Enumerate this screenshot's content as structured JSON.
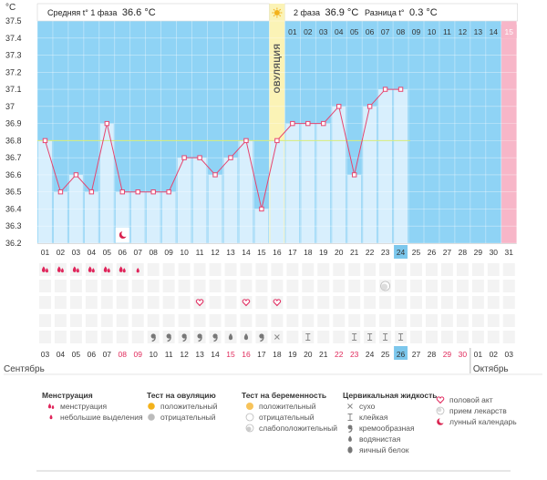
{
  "header": {
    "unit": "°C",
    "phase1_label": "Средняя t° 1 фаза",
    "phase1_value": "36.6 °C",
    "phase2_label": "2 фаза",
    "phase2_value": "36.9 °C",
    "diff_label": "Разница t°",
    "diff_value": "0.3 °C"
  },
  "ovulation_label": "ОВУЛЯЦИЯ",
  "cycle_days": [
    "01",
    "02",
    "03",
    "04",
    "05",
    "06",
    "07",
    "08",
    "09",
    "10",
    "11",
    "12",
    "13",
    "14",
    "15",
    "16",
    "17",
    "18",
    "19",
    "20",
    "21",
    "22",
    "23",
    "24",
    "25",
    "26",
    "27",
    "28",
    "29",
    "30",
    "31"
  ],
  "ovulation_day_index": 15,
  "today_day_index": 23,
  "phase2_top_days": [
    "01",
    "02",
    "03",
    "04",
    "05",
    "06",
    "07",
    "08",
    "09",
    "10",
    "11",
    "12",
    "13",
    "14",
    "15"
  ],
  "calendar_days": [
    "03",
    "04",
    "05",
    "06",
    "07",
    "08",
    "09",
    "10",
    "11",
    "12",
    "13",
    "14",
    "15",
    "16",
    "17",
    "18",
    "19",
    "20",
    "21",
    "22",
    "23",
    "24",
    "25",
    "26",
    "27",
    "28",
    "29",
    "30",
    "01",
    "02",
    "03"
  ],
  "weekend_day_indexes": [
    5,
    6,
    12,
    13,
    19,
    20,
    26,
    27
  ],
  "today_calendar_index": 23,
  "months": {
    "left": "Сентябрь",
    "right": "Октябрь",
    "right_start_index": 28
  },
  "chart_data": {
    "type": "line",
    "ylabel": "°C",
    "ylim": [
      36.2,
      37.5
    ],
    "yticks": [
      "36.2",
      "36.3",
      "36.4",
      "36.5",
      "36.6",
      "36.7",
      "36.8",
      "36.9",
      "37",
      "37.1",
      "37.2",
      "37.3",
      "37.4",
      "37.5"
    ],
    "coverline": 36.8,
    "series": [
      {
        "values": [
          36.8,
          36.5,
          36.6,
          36.5,
          36.9,
          36.5,
          36.5,
          36.5,
          36.5,
          36.7,
          36.7,
          36.6,
          36.7,
          36.8,
          36.4,
          36.8,
          36.9,
          36.9,
          36.9,
          37.0,
          36.6,
          37.0,
          37.1,
          37.1,
          null,
          null,
          null,
          null,
          null,
          null,
          null
        ]
      }
    ]
  },
  "symbols": {
    "menstruation": [
      0,
      1,
      2,
      3,
      4,
      5
    ],
    "light_spotting": [
      6
    ],
    "pregnancy_weak": [
      22
    ],
    "sex": [
      10,
      13,
      15
    ],
    "cervical": [
      {
        "day": 7,
        "type": "creamy"
      },
      {
        "day": 8,
        "type": "creamy"
      },
      {
        "day": 9,
        "type": "creamy"
      },
      {
        "day": 10,
        "type": "creamy"
      },
      {
        "day": 11,
        "type": "creamy"
      },
      {
        "day": 12,
        "type": "watery"
      },
      {
        "day": 13,
        "type": "watery"
      },
      {
        "day": 14,
        "type": "creamy"
      },
      {
        "day": 15,
        "type": "dry"
      },
      {
        "day": 17,
        "type": "sticky"
      },
      {
        "day": 20,
        "type": "sticky"
      },
      {
        "day": 21,
        "type": "sticky"
      },
      {
        "day": 22,
        "type": "sticky"
      },
      {
        "day": 23,
        "type": "sticky"
      }
    ]
  },
  "legend": {
    "menstruation": {
      "title": "Менструация",
      "items": [
        "менструация",
        "небольшие выделения"
      ]
    },
    "ovulation_test": {
      "title": "Тест на овуляцию",
      "items": [
        "положительный",
        "отрицательный"
      ]
    },
    "pregnancy_test": {
      "title": "Тест на беременность",
      "items": [
        "положительный",
        "отрицательный",
        "слабоположительный"
      ]
    },
    "cervical_fluid": {
      "title": "Цервикальная жидкость",
      "items": [
        "сухо",
        "клейкая",
        "кремообразная",
        "водянистая",
        "яичный белок"
      ]
    },
    "other": {
      "items": [
        "половой акт",
        "прием лекарств",
        "лунный календарь"
      ]
    }
  },
  "colors": {
    "phase1": "#8fd3f5",
    "phase2": "#8fd3f5",
    "ovulation": "#fbf3b6",
    "future": "#f7b6c8",
    "bar": "#d8effd",
    "line": "#e6456f",
    "coverline": "#d7ec79",
    "today": "#7cc7ec",
    "weekend": "#e02b5c"
  }
}
